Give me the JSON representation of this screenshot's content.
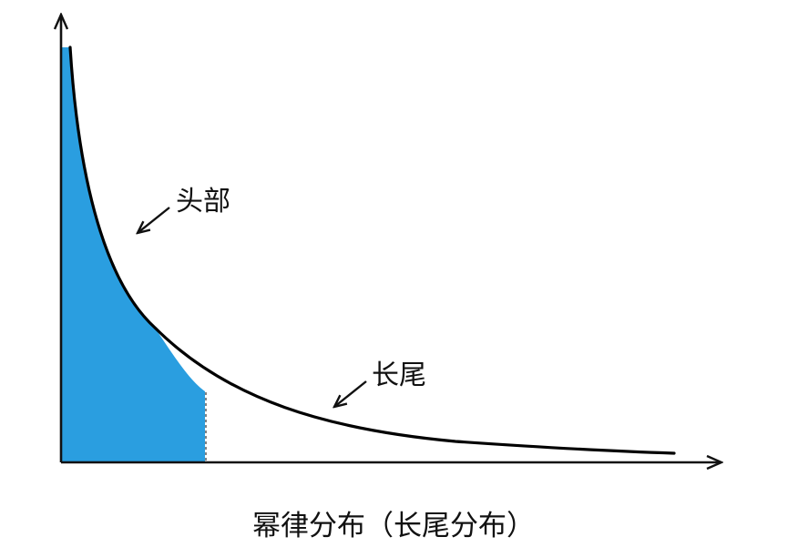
{
  "labels": {
    "head": "头部",
    "tail": "长尾",
    "caption": "幂律分布（长尾分布）"
  },
  "colors": {
    "head_fill": "#2a9ee0",
    "curve": "#000000",
    "axes": "#111111",
    "text": "#111111"
  },
  "icons": {
    "head_pointer": "arrow-down-left-icon",
    "tail_pointer": "arrow-down-left-icon"
  }
}
